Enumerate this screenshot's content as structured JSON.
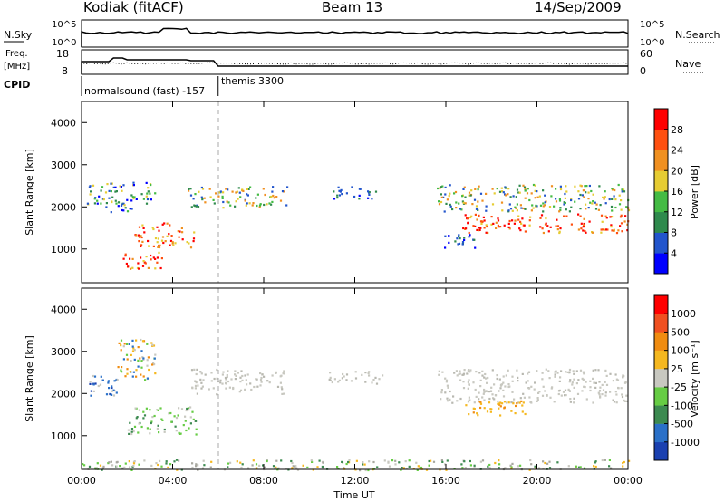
{
  "header": {
    "station": "Kodiak (fitACF)",
    "beam": "Beam 13",
    "date": "14/Sep/2009"
  },
  "top_strip": {
    "left_label": "N.Sky",
    "right_label": "N.Search",
    "left_ticks": [
      "10^5",
      "10^0"
    ],
    "right_ticks": [
      "10^5",
      "10^0"
    ]
  },
  "freq_strip": {
    "left_label_1": "Freq.",
    "left_label_2": "[MHz]",
    "left_ticks": [
      "18",
      "8"
    ],
    "right_label": "Nave",
    "right_ticks": [
      "60",
      "0"
    ]
  },
  "cpid": {
    "label": "CPID",
    "mode1": "normalsound (fast) -157",
    "mode2": "themis 3300",
    "switch_hour": 6.0
  },
  "chart_data": [
    {
      "type": "heatmap",
      "title": "",
      "xlabel": "",
      "ylabel": "Slant Range [km]",
      "y_ticks": [
        "1000",
        "2000",
        "3000",
        "4000"
      ],
      "ylim": [
        200,
        4500
      ],
      "xlim": [
        0,
        24
      ],
      "colorbar_label": "Power [dB]",
      "colorbar_ticks": [
        "4",
        "8",
        "12",
        "16",
        "20",
        "24",
        "28"
      ],
      "colorbar_colors": [
        "#0000ff",
        "#2255cc",
        "#2f8a4d",
        "#44bb44",
        "#e6cc33",
        "#f09020",
        "#ff5010",
        "#ff0000"
      ],
      "regions": [
        {
          "x0": 0.2,
          "x1": 3.2,
          "y0": 2050,
          "y1": 2600,
          "level": "mixed-low"
        },
        {
          "x0": 1.0,
          "x1": 2.3,
          "y0": 1850,
          "y1": 2150,
          "level": "mixed-low"
        },
        {
          "x0": 2.3,
          "x1": 4.9,
          "y0": 1050,
          "y1": 1650,
          "level": "high"
        },
        {
          "x0": 1.8,
          "x1": 3.5,
          "y0": 550,
          "y1": 950,
          "level": "high"
        },
        {
          "x0": 4.6,
          "x1": 9.0,
          "y0": 2000,
          "y1": 2500,
          "level": "mid"
        },
        {
          "x0": 11.0,
          "x1": 13.0,
          "y0": 2200,
          "y1": 2500,
          "level": "low"
        },
        {
          "x0": 15.6,
          "x1": 24.0,
          "y0": 1900,
          "y1": 2550,
          "level": "mid"
        },
        {
          "x0": 16.7,
          "x1": 24.0,
          "y0": 1400,
          "y1": 1850,
          "level": "high"
        },
        {
          "x0": 15.8,
          "x1": 17.3,
          "y0": 1000,
          "y1": 1400,
          "level": "low"
        }
      ]
    },
    {
      "type": "heatmap",
      "title": "",
      "xlabel": "Time UT",
      "ylabel": "Slant Range [km]",
      "y_ticks": [
        "1000",
        "2000",
        "3000",
        "4000"
      ],
      "x_ticks": [
        "00:00",
        "04:00",
        "08:00",
        "12:00",
        "16:00",
        "20:00",
        "00:00"
      ],
      "ylim": [
        200,
        4500
      ],
      "xlim": [
        0,
        24
      ],
      "colorbar_label": "Velocity [m s⁻¹]",
      "colorbar_ticks": [
        "1000",
        "500",
        "100",
        "25",
        "-25",
        "-100",
        "-500",
        "-1000"
      ],
      "colorbar_colors": [
        "#1a40b0",
        "#2a70c8",
        "#3c8a50",
        "#66cc44",
        "#c8c8c0",
        "#f5b820",
        "#f08c10",
        "#f05020",
        "#ff0000"
      ],
      "regions": [
        {
          "x0": 0.2,
          "x1": 1.6,
          "y0": 1950,
          "y1": 2450,
          "level": "blue"
        },
        {
          "x0": 1.5,
          "x1": 3.2,
          "y0": 2300,
          "y1": 3300,
          "level": "mixed"
        },
        {
          "x0": 2.0,
          "x1": 5.0,
          "y0": 1050,
          "y1": 1700,
          "level": "green"
        },
        {
          "x0": 4.8,
          "x1": 9.0,
          "y0": 2000,
          "y1": 2600,
          "level": "grey"
        },
        {
          "x0": 10.8,
          "x1": 13.2,
          "y0": 2250,
          "y1": 2550,
          "level": "grey"
        },
        {
          "x0": 15.6,
          "x1": 24.0,
          "y0": 1800,
          "y1": 2600,
          "level": "grey"
        },
        {
          "x0": 16.8,
          "x1": 19.5,
          "y0": 1500,
          "y1": 1850,
          "level": "orange"
        },
        {
          "x0": 0.0,
          "x1": 24.0,
          "y0": 200,
          "y1": 450,
          "level": "ground"
        }
      ]
    }
  ]
}
